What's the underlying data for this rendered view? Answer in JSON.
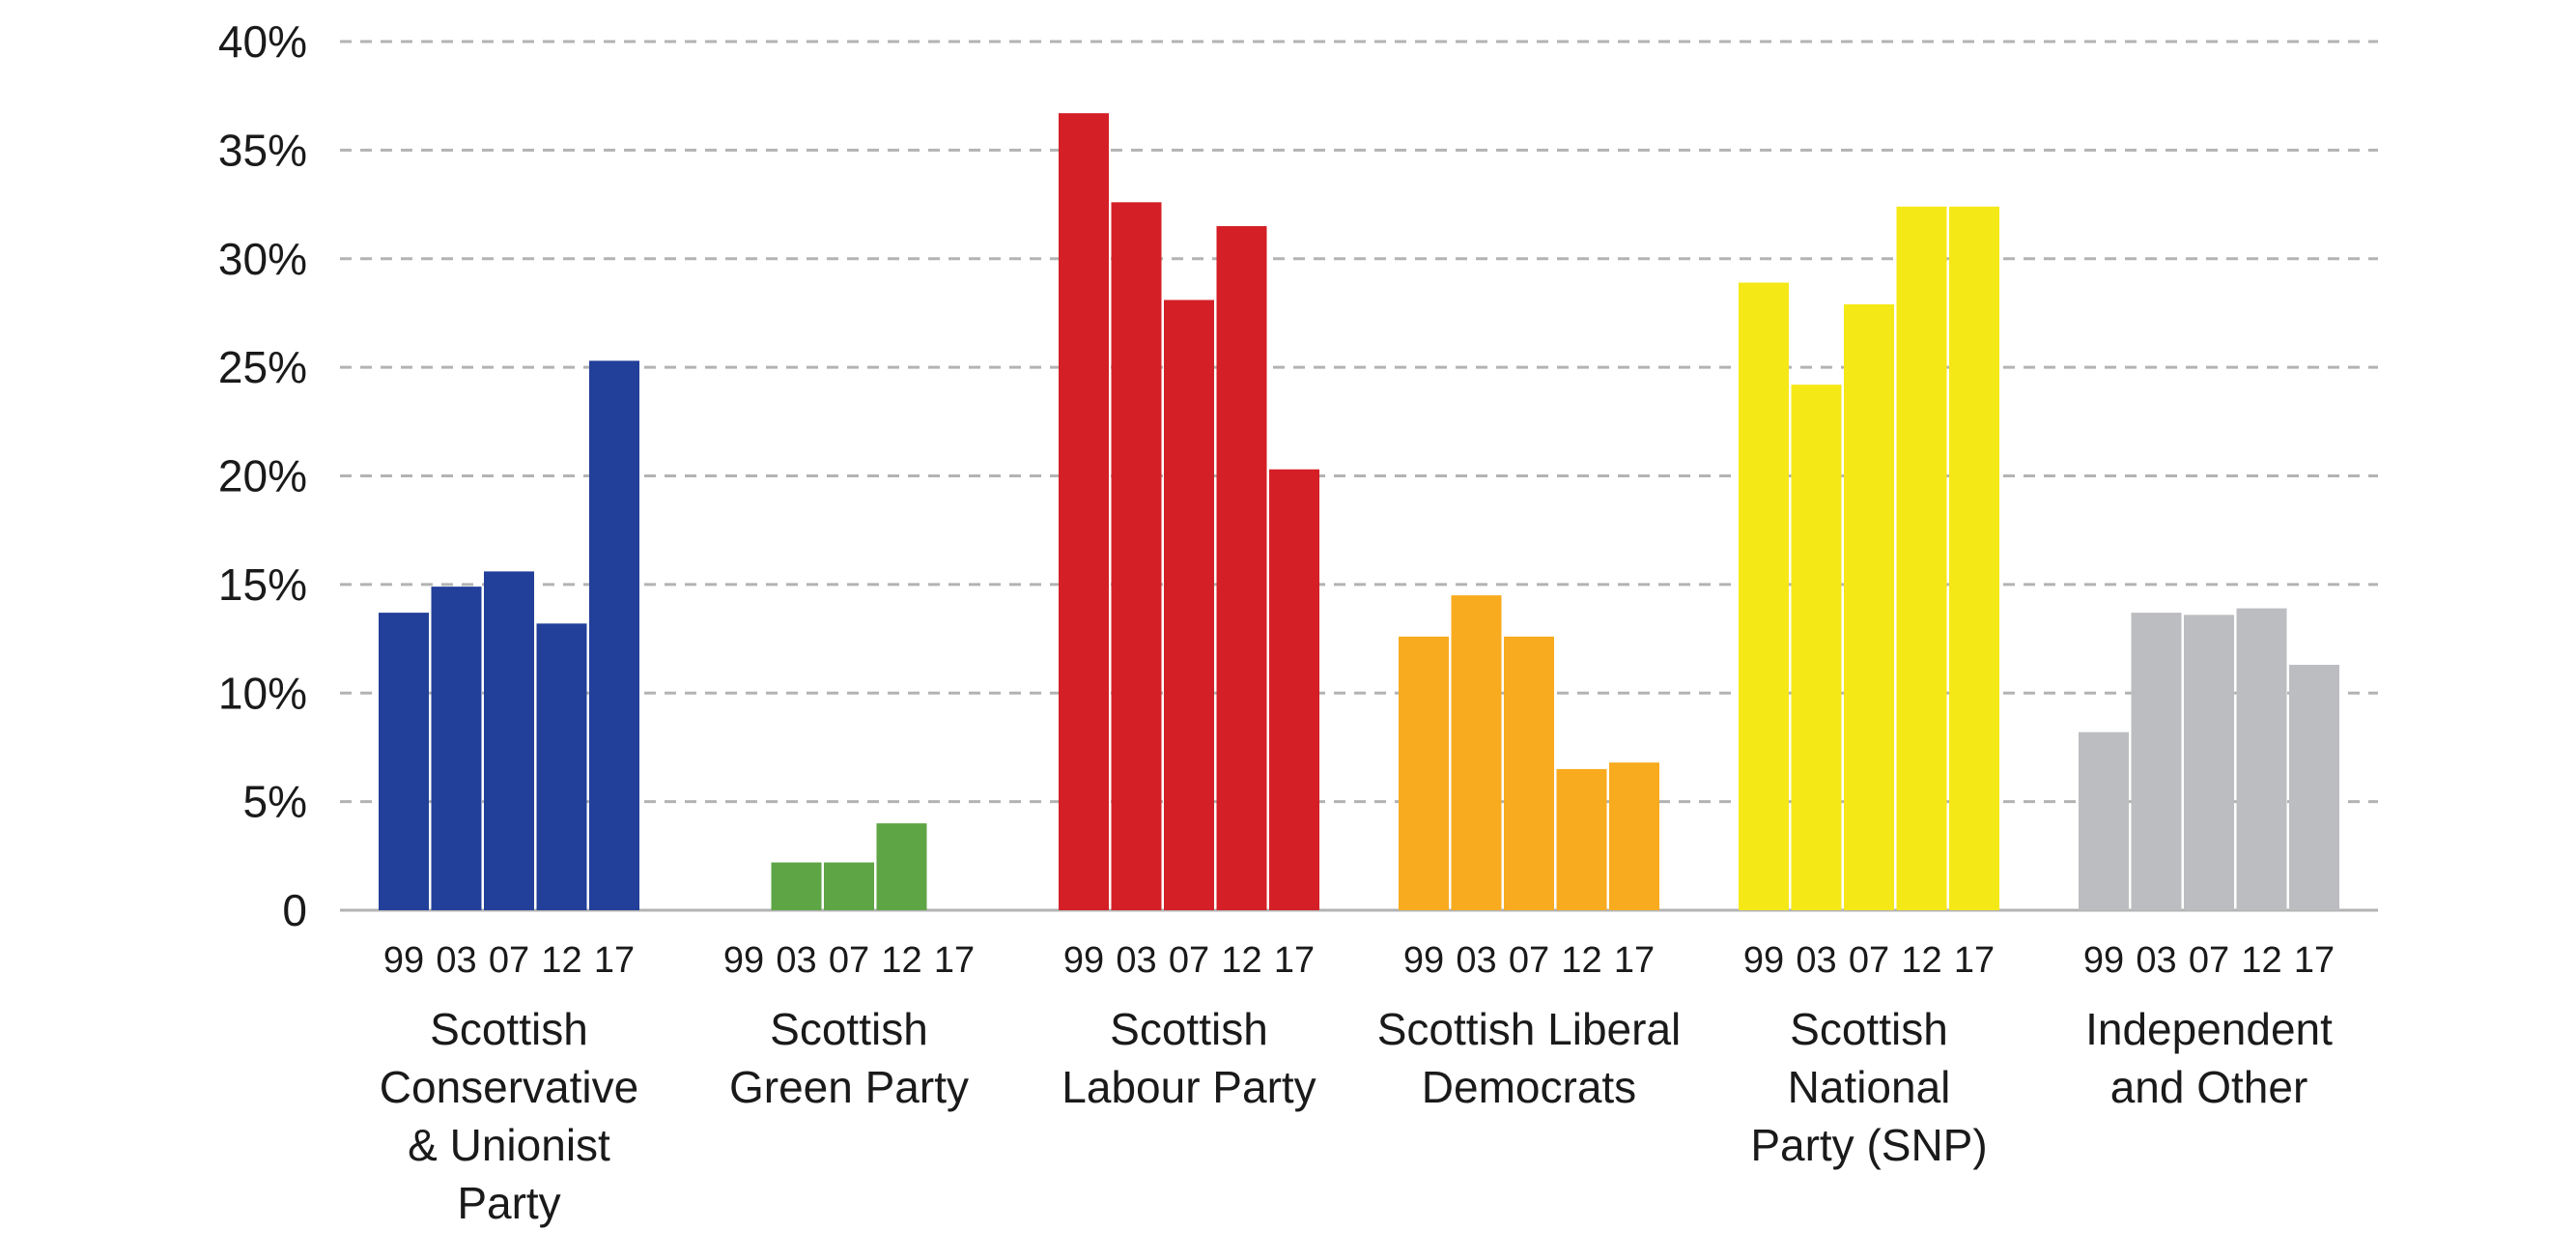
{
  "chart_data": {
    "type": "bar",
    "title": "",
    "xlabel": "",
    "ylabel": "",
    "ylim": [
      0,
      40
    ],
    "yticks": [
      0,
      5,
      10,
      15,
      20,
      25,
      30,
      35,
      40
    ],
    "ytick_labels": [
      "0",
      "5%",
      "10%",
      "15%",
      "20%",
      "25%",
      "30%",
      "35%",
      "40%"
    ],
    "grid": true,
    "legend": "none",
    "sub_categories": [
      "99",
      "03",
      "07",
      "12",
      "17"
    ],
    "groups": [
      {
        "label_lines": [
          "Scottish",
          "Conservative",
          "& Unionist",
          "Party"
        ],
        "color": "#223f99",
        "values": [
          13.7,
          14.9,
          15.6,
          13.2,
          25.3
        ]
      },
      {
        "label_lines": [
          "Scottish",
          "Green Party"
        ],
        "color": "#5da545",
        "values": [
          null,
          2.2,
          2.2,
          4.0,
          null
        ]
      },
      {
        "label_lines": [
          "Scottish",
          "Labour Party"
        ],
        "color": "#d41f26",
        "values": [
          36.7,
          32.6,
          28.1,
          31.5,
          20.3
        ]
      },
      {
        "label_lines": [
          "Scottish Liberal",
          "Democrats"
        ],
        "color": "#f8ab1e",
        "values": [
          12.6,
          14.5,
          12.6,
          6.5,
          6.8
        ]
      },
      {
        "label_lines": [
          "Scottish",
          "National",
          "Party (SNP)"
        ],
        "color": "#f5e817",
        "values": [
          28.9,
          24.2,
          27.9,
          32.4,
          32.4
        ]
      },
      {
        "label_lines": [
          "Independent",
          "and Other"
        ],
        "color": "#bcbdc0",
        "values": [
          8.2,
          13.7,
          13.6,
          13.9,
          11.3
        ]
      }
    ]
  }
}
